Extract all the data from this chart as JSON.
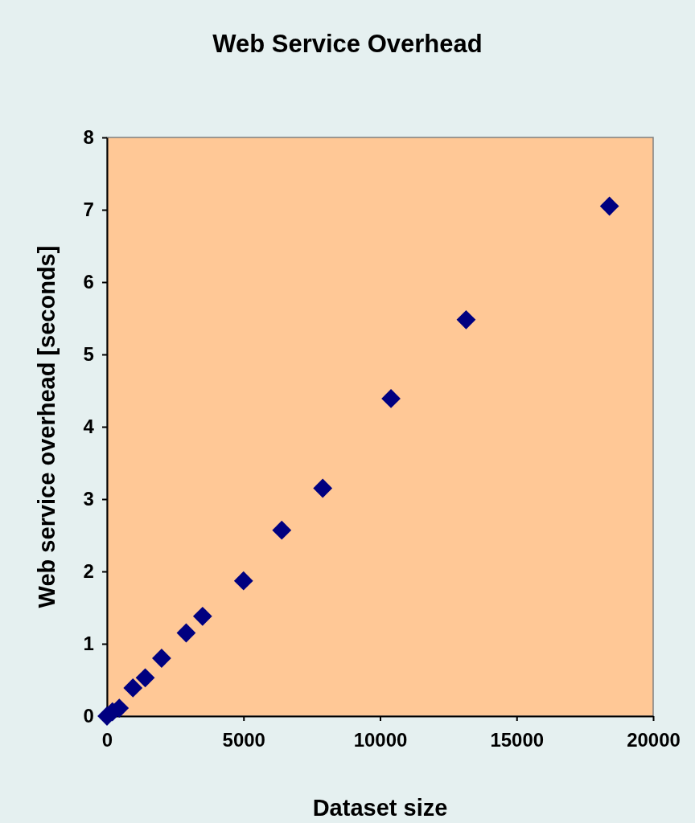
{
  "chart_data": {
    "type": "scatter",
    "title": "Web Service Overhead",
    "xlabel": "Dataset size",
    "ylabel": "Web service overhead [seconds]",
    "x": [
      0,
      200,
      450,
      950,
      1400,
      2000,
      2900,
      3500,
      5000,
      6400,
      7900,
      10400,
      13150,
      18400
    ],
    "values": [
      0,
      0.06,
      0.11,
      0.39,
      0.53,
      0.8,
      1.15,
      1.38,
      1.87,
      2.57,
      3.15,
      4.39,
      5.48,
      7.05
    ],
    "color": "#000080",
    "marker": "diamond",
    "xlim": [
      0,
      20000
    ],
    "xticks": [
      0,
      5000,
      10000,
      15000,
      20000
    ],
    "ylim": [
      0,
      8
    ],
    "yticks": [
      0,
      1,
      2,
      3,
      4,
      5,
      6,
      7,
      8
    ],
    "grid": false
  }
}
